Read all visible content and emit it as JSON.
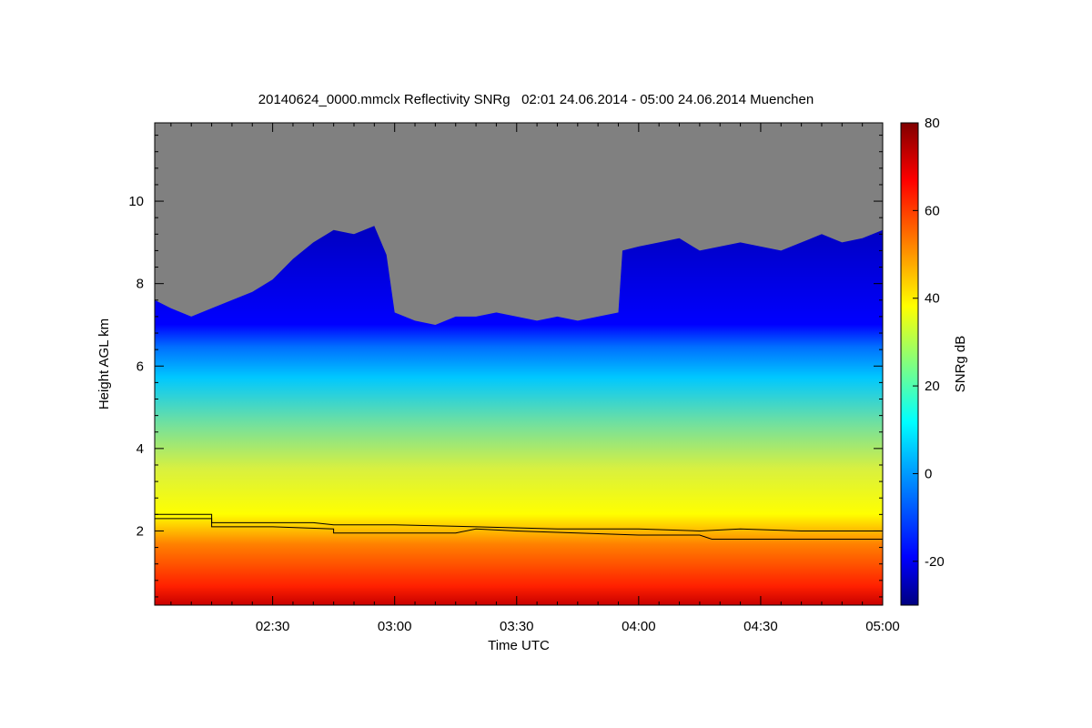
{
  "chart_data": {
    "type": "heatmap",
    "title": "20140624_0000.mmclx Reflectivity SNRg   02:01 24.06.2014 - 05:00 24.06.2014 Muenchen",
    "xlabel": "Time UTC",
    "ylabel": "Height AGL km",
    "colorbar_label": "SNRg dB",
    "x_range_minutes_utc": [
      121,
      300
    ],
    "y_range_km": [
      0.2,
      11.9
    ],
    "colorbar_range_db": [
      -30,
      80
    ],
    "x_ticks": [
      {
        "label": "02:30",
        "value": 150
      },
      {
        "label": "03:00",
        "value": 180
      },
      {
        "label": "03:30",
        "value": 210
      },
      {
        "label": "04:00",
        "value": 240
      },
      {
        "label": "04:30",
        "value": 270
      },
      {
        "label": "05:00",
        "value": 300
      }
    ],
    "y_ticks": [
      {
        "label": "2",
        "value": 2
      },
      {
        "label": "4",
        "value": 4
      },
      {
        "label": "6",
        "value": 6
      },
      {
        "label": "8",
        "value": 8
      },
      {
        "label": "10",
        "value": 10
      }
    ],
    "colorbar_ticks": [
      {
        "label": "-20",
        "value": -20
      },
      {
        "label": "0",
        "value": 0
      },
      {
        "label": "20",
        "value": 20
      },
      {
        "label": "40",
        "value": 40
      },
      {
        "label": "60",
        "value": 60
      },
      {
        "label": "80",
        "value": 80
      }
    ],
    "no_signal_color": "#808080",
    "cloud_top_km": [
      [
        121,
        7.6
      ],
      [
        125,
        7.4
      ],
      [
        130,
        7.2
      ],
      [
        135,
        7.4
      ],
      [
        140,
        7.6
      ],
      [
        145,
        7.8
      ],
      [
        150,
        8.1
      ],
      [
        155,
        8.6
      ],
      [
        160,
        9.0
      ],
      [
        165,
        9.3
      ],
      [
        170,
        9.2
      ],
      [
        175,
        9.4
      ],
      [
        178,
        8.7
      ],
      [
        180,
        7.3
      ],
      [
        185,
        7.1
      ],
      [
        190,
        7.0
      ],
      [
        195,
        7.2
      ],
      [
        200,
        7.2
      ],
      [
        205,
        7.3
      ],
      [
        210,
        7.2
      ],
      [
        215,
        7.1
      ],
      [
        220,
        7.2
      ],
      [
        225,
        7.1
      ],
      [
        230,
        7.2
      ],
      [
        235,
        7.3
      ],
      [
        236,
        8.8
      ],
      [
        240,
        8.9
      ],
      [
        245,
        9.0
      ],
      [
        250,
        9.1
      ],
      [
        255,
        8.8
      ],
      [
        260,
        8.9
      ],
      [
        265,
        9.0
      ],
      [
        270,
        8.9
      ],
      [
        275,
        8.8
      ],
      [
        280,
        9.0
      ],
      [
        285,
        9.2
      ],
      [
        290,
        9.0
      ],
      [
        295,
        9.1
      ],
      [
        300,
        9.3
      ]
    ],
    "boundary_layer_lines_km": [
      {
        "points": [
          [
            121,
            2.4
          ],
          [
            135,
            2.4
          ],
          [
            135,
            2.2
          ],
          [
            150,
            2.2
          ],
          [
            160,
            2.2
          ],
          [
            165,
            2.15
          ],
          [
            180,
            2.15
          ],
          [
            200,
            2.1
          ],
          [
            220,
            2.05
          ],
          [
            240,
            2.05
          ],
          [
            255,
            2.0
          ],
          [
            265,
            2.05
          ],
          [
            280,
            2.0
          ],
          [
            300,
            2.0
          ]
        ]
      },
      {
        "points": [
          [
            121,
            2.3
          ],
          [
            135,
            2.3
          ],
          [
            135,
            2.1
          ],
          [
            150,
            2.1
          ],
          [
            165,
            2.05
          ],
          [
            165,
            1.95
          ],
          [
            180,
            1.95
          ],
          [
            195,
            1.95
          ],
          [
            200,
            2.05
          ],
          [
            210,
            2.0
          ],
          [
            225,
            1.95
          ],
          [
            240,
            1.9
          ],
          [
            255,
            1.9
          ],
          [
            258,
            1.8
          ],
          [
            280,
            1.8
          ],
          [
            300,
            1.8
          ]
        ]
      }
    ]
  }
}
